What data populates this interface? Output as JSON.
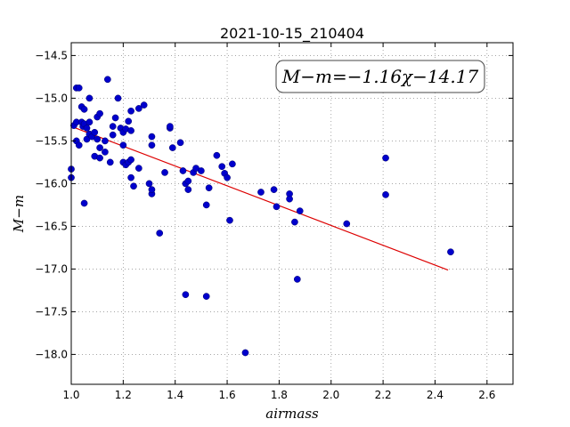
{
  "chart_data": {
    "type": "scatter",
    "title": "2021-10-15_210404",
    "xlabel": "airmass",
    "ylabel": "M−m",
    "xlim": [
      1.0,
      2.7
    ],
    "ylim": [
      -18.35,
      -14.35
    ],
    "y_inverted": true,
    "grid": true,
    "grid_style": "dotted",
    "x_ticks": [
      1.0,
      1.2,
      1.4,
      1.6,
      1.8,
      2.0,
      2.2,
      2.4,
      2.6
    ],
    "x_tick_labels": [
      "1.0",
      "1.2",
      "1.4",
      "1.6",
      "1.8",
      "2.0",
      "2.2",
      "2.4",
      "2.6"
    ],
    "y_ticks": [
      -14.5,
      -15.0,
      -15.5,
      -16.0,
      -16.5,
      -17.0,
      -17.5,
      -18.0
    ],
    "y_tick_labels": [
      "−14.5",
      "−15.0",
      "−15.5",
      "−16.0",
      "−16.5",
      "−17.0",
      "−17.5",
      "−18.0"
    ],
    "annotation": "M−m=−1.16χ−14.17",
    "point_color": "#0000cc",
    "fit_color": "#dd0000",
    "fit": {
      "slope": -1.16,
      "intercept": -14.17,
      "x_range": [
        1.0,
        2.45
      ]
    },
    "points": [
      [
        1.0,
        -15.83
      ],
      [
        1.0,
        -15.93
      ],
      [
        1.01,
        -15.32
      ],
      [
        1.02,
        -14.88
      ],
      [
        1.02,
        -15.28
      ],
      [
        1.02,
        -15.5
      ],
      [
        1.03,
        -14.88
      ],
      [
        1.03,
        -15.55
      ],
      [
        1.04,
        -15.1
      ],
      [
        1.04,
        -15.28
      ],
      [
        1.045,
        -15.33
      ],
      [
        1.05,
        -15.13
      ],
      [
        1.05,
        -15.3
      ],
      [
        1.05,
        -16.23
      ],
      [
        1.06,
        -15.35
      ],
      [
        1.06,
        -15.48
      ],
      [
        1.07,
        -15.0
      ],
      [
        1.07,
        -15.28
      ],
      [
        1.07,
        -15.42
      ],
      [
        1.08,
        -15.45
      ],
      [
        1.09,
        -15.4
      ],
      [
        1.09,
        -15.68
      ],
      [
        1.1,
        -15.22
      ],
      [
        1.1,
        -15.48
      ],
      [
        1.11,
        -15.18
      ],
      [
        1.11,
        -15.58
      ],
      [
        1.11,
        -15.7
      ],
      [
        1.13,
        -15.5
      ],
      [
        1.13,
        -15.63
      ],
      [
        1.14,
        -14.78
      ],
      [
        1.15,
        -15.75
      ],
      [
        1.16,
        -15.33
      ],
      [
        1.16,
        -15.43
      ],
      [
        1.17,
        -15.23
      ],
      [
        1.18,
        -15.0
      ],
      [
        1.19,
        -15.35
      ],
      [
        1.2,
        -15.4
      ],
      [
        1.2,
        -15.75
      ],
      [
        1.2,
        -15.55
      ],
      [
        1.21,
        -15.36
      ],
      [
        1.21,
        -15.78
      ],
      [
        1.22,
        -15.75
      ],
      [
        1.22,
        -15.27
      ],
      [
        1.23,
        -15.15
      ],
      [
        1.23,
        -15.38
      ],
      [
        1.23,
        -15.72
      ],
      [
        1.23,
        -15.93
      ],
      [
        1.24,
        -16.03
      ],
      [
        1.26,
        -15.12
      ],
      [
        1.26,
        -15.82
      ],
      [
        1.28,
        -15.08
      ],
      [
        1.3,
        -16.0
      ],
      [
        1.31,
        -16.12
      ],
      [
        1.31,
        -16.07
      ],
      [
        1.31,
        -15.45
      ],
      [
        1.31,
        -15.55
      ],
      [
        1.34,
        -16.58
      ],
      [
        1.36,
        -15.87
      ],
      [
        1.38,
        -15.35
      ],
      [
        1.38,
        -15.33
      ],
      [
        1.39,
        -15.58
      ],
      [
        1.42,
        -15.52
      ],
      [
        1.43,
        -15.85
      ],
      [
        1.44,
        -16.0
      ],
      [
        1.44,
        -17.3
      ],
      [
        1.45,
        -16.07
      ],
      [
        1.45,
        -15.97
      ],
      [
        1.47,
        -15.87
      ],
      [
        1.48,
        -15.82
      ],
      [
        1.5,
        -15.85
      ],
      [
        1.52,
        -16.25
      ],
      [
        1.52,
        -17.32
      ],
      [
        1.53,
        -16.05
      ],
      [
        1.56,
        -15.67
      ],
      [
        1.58,
        -15.8
      ],
      [
        1.59,
        -15.88
      ],
      [
        1.6,
        -15.93
      ],
      [
        1.61,
        -16.43
      ],
      [
        1.62,
        -15.77
      ],
      [
        1.67,
        -17.98
      ],
      [
        1.73,
        -16.1
      ],
      [
        1.78,
        -16.07
      ],
      [
        1.79,
        -16.27
      ],
      [
        1.84,
        -16.12
      ],
      [
        1.84,
        -16.18
      ],
      [
        1.86,
        -16.45
      ],
      [
        1.87,
        -17.12
      ],
      [
        1.88,
        -16.32
      ],
      [
        2.06,
        -16.47
      ],
      [
        2.21,
        -15.7
      ],
      [
        2.21,
        -16.13
      ],
      [
        2.46,
        -16.8
      ]
    ]
  }
}
